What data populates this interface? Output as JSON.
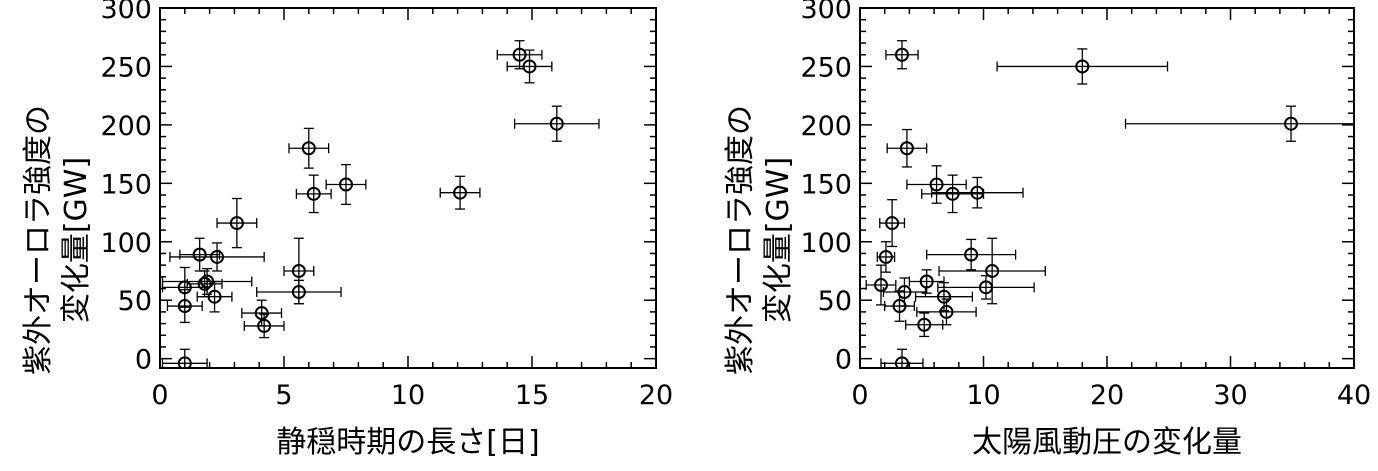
{
  "chart_data": [
    {
      "type": "scatter",
      "xlabel": "静穏時期の長さ[日]",
      "ylabel_lines": [
        "紫外オーロラ強度の",
        "変化量[GW]"
      ],
      "xlim": [
        0,
        20
      ],
      "ylim": [
        -8,
        300
      ],
      "xticks": [
        "0",
        "5",
        "10",
        "15",
        "20"
      ],
      "yticks": [
        "0",
        "50",
        "100",
        "150",
        "200",
        "250",
        "300"
      ],
      "points": [
        {
          "x": 14.5,
          "y": 260,
          "xerr": 0.9,
          "yerr": 12
        },
        {
          "x": 14.9,
          "y": 250,
          "xerr": 0.9,
          "yerr": 14
        },
        {
          "x": 16.0,
          "y": 201,
          "xerr": 1.7,
          "yerr": 15
        },
        {
          "x": 6.0,
          "y": 180,
          "xerr": 0.8,
          "yerr": 17
        },
        {
          "x": 6.2,
          "y": 141,
          "xerr": 0.7,
          "yerr": 16
        },
        {
          "x": 7.5,
          "y": 149,
          "xerr": 0.8,
          "yerr": 17
        },
        {
          "x": 12.1,
          "y": 142,
          "xerr": 0.8,
          "yerr": 14
        },
        {
          "x": 3.1,
          "y": 116,
          "xerr": 0.8,
          "yerr": 21
        },
        {
          "x": 1.6,
          "y": 89,
          "xerr": 0.8,
          "yerr": 14
        },
        {
          "x": 2.3,
          "y": 87,
          "xerr": 1.9,
          "yerr": 12
        },
        {
          "x": 1.0,
          "y": 61,
          "xerr": 0.9,
          "yerr": 17
        },
        {
          "x": 1.8,
          "y": 64,
          "xerr": 0.7,
          "yerr": 11
        },
        {
          "x": 1.9,
          "y": 66,
          "xerr": 1.8,
          "yerr": 11
        },
        {
          "x": 2.2,
          "y": 53,
          "xerr": 0.7,
          "yerr": 13
        },
        {
          "x": 1.0,
          "y": 45,
          "xerr": 0.7,
          "yerr": 14
        },
        {
          "x": 5.6,
          "y": 75,
          "xerr": 0.6,
          "yerr": 28
        },
        {
          "x": 5.6,
          "y": 57,
          "xerr": 1.7,
          "yerr": 10
        },
        {
          "x": 4.1,
          "y": 39,
          "xerr": 0.8,
          "yerr": 11
        },
        {
          "x": 4.2,
          "y": 28,
          "xerr": 0.8,
          "yerr": 10
        },
        {
          "x": 1.0,
          "y": -4,
          "xerr": 0.9,
          "yerr": 12
        }
      ]
    },
    {
      "type": "scatter",
      "xlabel": "太陽風動圧の変化量",
      "ylabel_lines": [
        "紫外オーロラ強度の",
        "変化量[GW]"
      ],
      "xlim": [
        0,
        40
      ],
      "ylim": [
        -8,
        300
      ],
      "xticks": [
        "0",
        "10",
        "20",
        "30",
        "40"
      ],
      "yticks": [
        "0",
        "50",
        "100",
        "150",
        "200",
        "250",
        "300"
      ],
      "points": [
        {
          "x": 3.4,
          "y": 260,
          "xerr": 1.3,
          "yerr": 12
        },
        {
          "x": 18.0,
          "y": 250,
          "xerr": 6.9,
          "yerr": 15
        },
        {
          "x": 34.9,
          "y": 201,
          "xerr": 13.4,
          "yerr": 15
        },
        {
          "x": 3.8,
          "y": 180,
          "xerr": 1.6,
          "yerr": 16
        },
        {
          "x": 6.2,
          "y": 149,
          "xerr": 2.4,
          "yerr": 16
        },
        {
          "x": 7.5,
          "y": 141,
          "xerr": 2.5,
          "yerr": 16
        },
        {
          "x": 9.5,
          "y": 142,
          "xerr": 3.7,
          "yerr": 13
        },
        {
          "x": 2.6,
          "y": 116,
          "xerr": 1.0,
          "yerr": 20
        },
        {
          "x": 2.1,
          "y": 87,
          "xerr": 0.7,
          "yerr": 13
        },
        {
          "x": 9.0,
          "y": 89,
          "xerr": 3.6,
          "yerr": 13
        },
        {
          "x": 10.7,
          "y": 75,
          "xerr": 4.3,
          "yerr": 28
        },
        {
          "x": 1.7,
          "y": 63,
          "xerr": 1.2,
          "yerr": 17
        },
        {
          "x": 5.4,
          "y": 66,
          "xerr": 1.4,
          "yerr": 10
        },
        {
          "x": 10.2,
          "y": 61,
          "xerr": 3.9,
          "yerr": 10
        },
        {
          "x": 6.8,
          "y": 53,
          "xerr": 2.3,
          "yerr": 12
        },
        {
          "x": 3.6,
          "y": 57,
          "xerr": 1.7,
          "yerr": 12
        },
        {
          "x": 3.2,
          "y": 45,
          "xerr": 1.2,
          "yerr": 13
        },
        {
          "x": 7.0,
          "y": 40,
          "xerr": 2.4,
          "yerr": 11
        },
        {
          "x": 5.2,
          "y": 29,
          "xerr": 1.5,
          "yerr": 10
        },
        {
          "x": 3.4,
          "y": -4,
          "xerr": 1.7,
          "yerr": 12
        }
      ]
    }
  ]
}
